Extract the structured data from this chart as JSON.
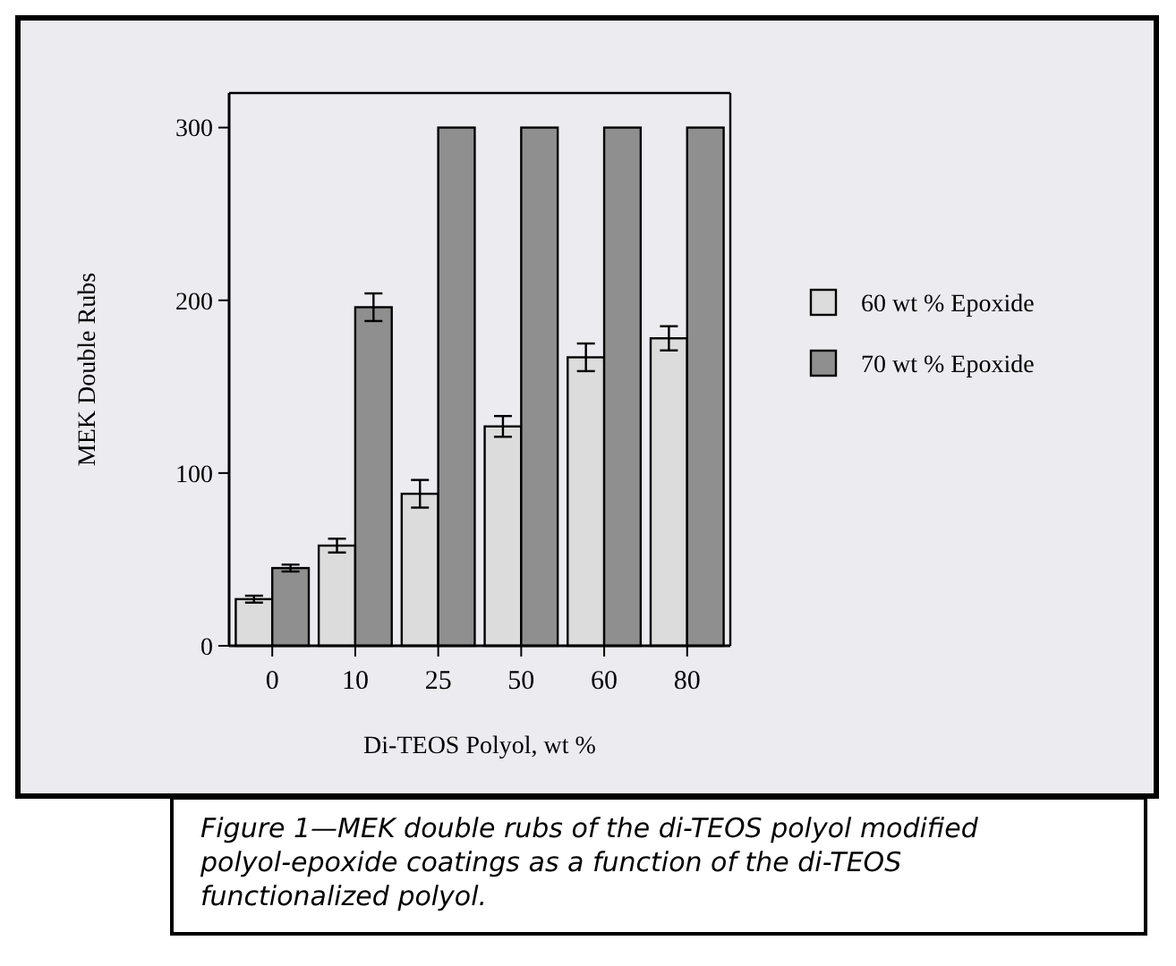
{
  "chart_data": {
    "type": "bar",
    "xlabel": "Di-TEOS Polyol, wt %",
    "ylabel": "MEK Double Rubs",
    "categories": [
      "0",
      "10",
      "25",
      "50",
      "60",
      "80"
    ],
    "series": [
      {
        "name": "60 wt % Epoxide",
        "color": "#dcdcdc",
        "values": [
          27,
          58,
          88,
          127,
          167,
          178
        ],
        "errors": [
          2,
          4,
          8,
          6,
          8,
          7
        ]
      },
      {
        "name": "70 wt % Epoxide",
        "color": "#8f8f8f",
        "values": [
          45,
          196,
          300,
          300,
          300,
          300
        ],
        "errors": [
          2,
          8,
          null,
          null,
          null,
          null
        ]
      }
    ],
    "ylim": [
      0,
      320
    ],
    "yticks": [
      0,
      100,
      200,
      300
    ],
    "legend": "right",
    "annotations": [
      "Figure 1—MEK double rubs of the di-TEOS polyol modified polyol-epoxide coatings as a function of the di-TEOS functionalized polyol."
    ]
  }
}
